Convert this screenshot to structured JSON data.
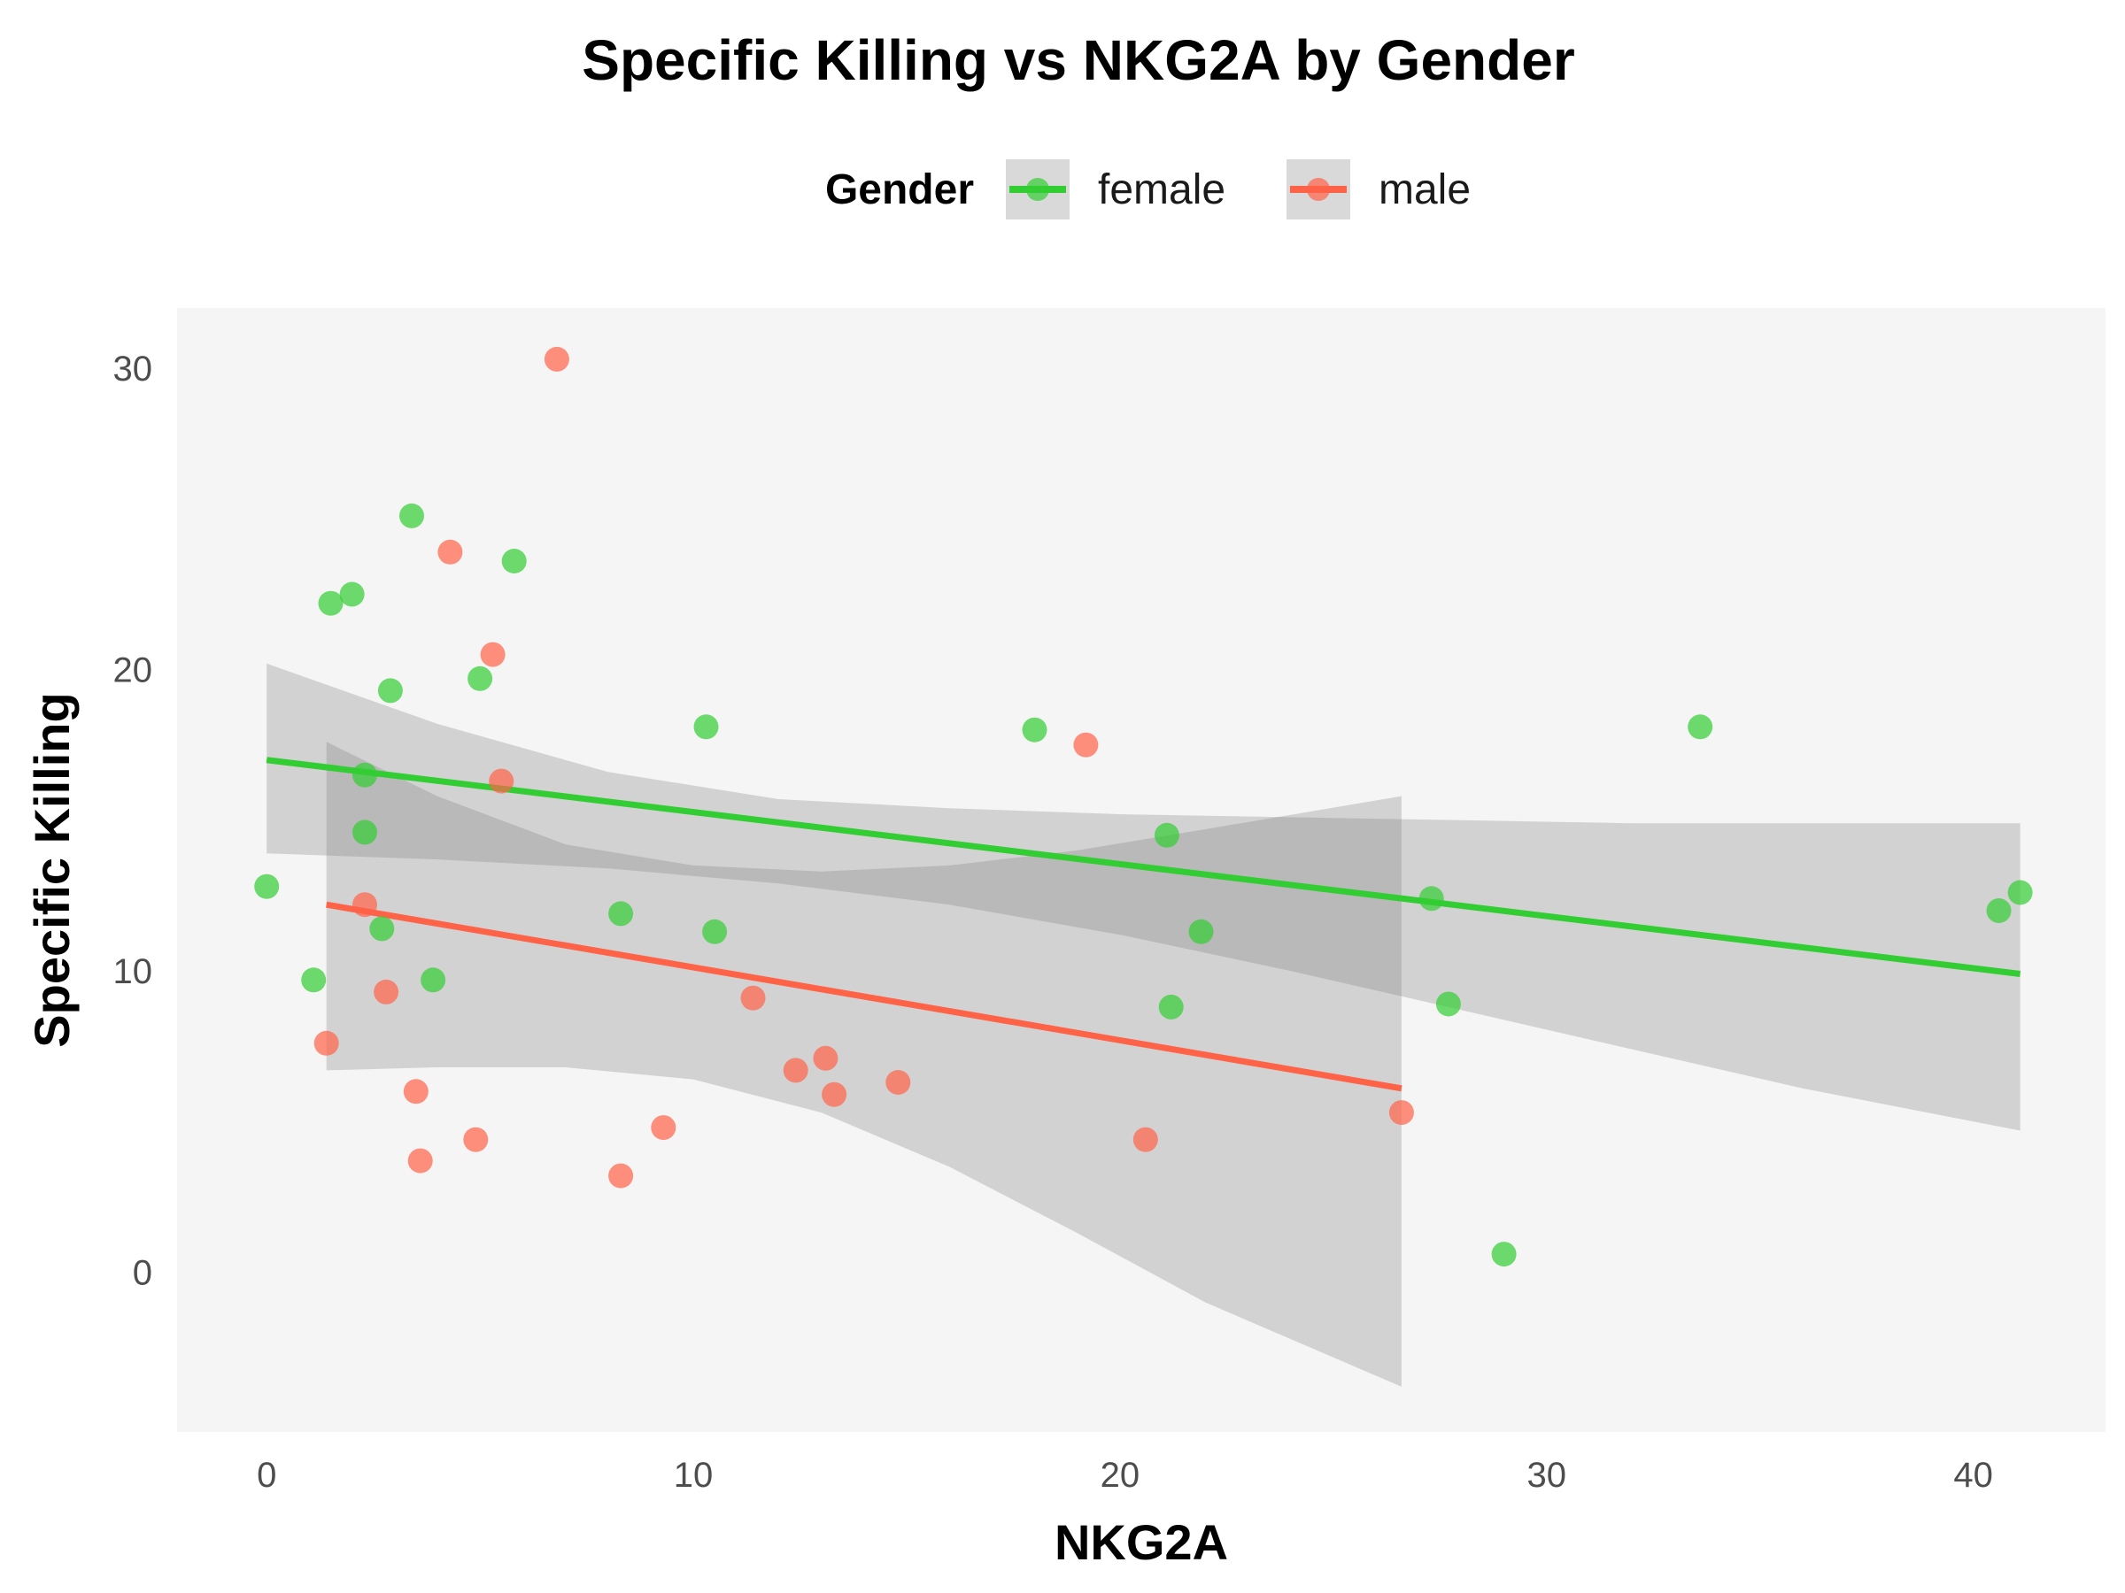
{
  "chart_data": {
    "type": "scatter",
    "title": "Specific Killing vs NKG2A by Gender",
    "xlabel": "NKG2A",
    "ylabel": "Specific Killing",
    "xlim": [
      -2.1,
      43.1
    ],
    "ylim": [
      -5.3,
      32.0
    ],
    "x_ticks": [
      "0",
      "10",
      "20",
      "30",
      "40"
    ],
    "y_ticks": [
      "0",
      "10",
      "20",
      "30"
    ],
    "grid": false,
    "legend": {
      "title": "Gender",
      "placement": "top",
      "entries": [
        "female",
        "male"
      ]
    },
    "series": [
      {
        "name": "female",
        "color": "#32CD32",
        "points": [
          [
            0.0,
            12.8
          ],
          [
            1.1,
            9.7
          ],
          [
            1.5,
            22.2
          ],
          [
            2.0,
            22.5
          ],
          [
            2.3,
            16.5
          ],
          [
            2.3,
            14.6
          ],
          [
            2.7,
            11.4
          ],
          [
            2.9,
            19.3
          ],
          [
            3.4,
            25.1
          ],
          [
            3.9,
            9.7
          ],
          [
            5.0,
            19.7
          ],
          [
            5.8,
            23.6
          ],
          [
            8.3,
            11.9
          ],
          [
            10.3,
            18.1
          ],
          [
            10.5,
            11.3
          ],
          [
            18.0,
            18.0
          ],
          [
            21.1,
            14.5
          ],
          [
            21.2,
            8.8
          ],
          [
            21.9,
            11.3
          ],
          [
            27.3,
            12.4
          ],
          [
            27.7,
            8.9
          ],
          [
            29.0,
            0.6
          ],
          [
            33.6,
            18.1
          ],
          [
            40.6,
            12.0
          ],
          [
            41.1,
            12.6
          ]
        ],
        "fit": {
          "x": [
            0.0,
            41.1
          ],
          "y": [
            17.0,
            9.9
          ]
        },
        "ci_x": [
          0.0,
          4,
          8,
          12,
          16,
          20,
          24,
          28,
          32,
          36,
          41.1
        ],
        "ci_lower": [
          13.9,
          13.7,
          13.4,
          12.9,
          12.2,
          11.2,
          10.0,
          8.7,
          7.4,
          6.1,
          4.7
        ],
        "ci_upper": [
          20.2,
          18.2,
          16.6,
          15.7,
          15.4,
          15.2,
          15.1,
          15.0,
          14.9,
          14.9,
          14.9
        ]
      },
      {
        "name": "male",
        "color": "#FF6347",
        "points": [
          [
            1.4,
            7.6
          ],
          [
            2.3,
            12.2
          ],
          [
            2.8,
            9.3
          ],
          [
            3.5,
            6.0
          ],
          [
            3.6,
            3.7
          ],
          [
            4.3,
            23.9
          ],
          [
            4.9,
            4.4
          ],
          [
            5.3,
            20.5
          ],
          [
            5.5,
            16.3
          ],
          [
            6.8,
            30.3
          ],
          [
            8.3,
            3.2
          ],
          [
            9.3,
            4.8
          ],
          [
            11.4,
            9.1
          ],
          [
            12.4,
            6.7
          ],
          [
            13.1,
            7.1
          ],
          [
            13.3,
            5.9
          ],
          [
            14.8,
            6.3
          ],
          [
            19.2,
            17.5
          ],
          [
            20.6,
            4.4
          ],
          [
            26.6,
            5.3
          ]
        ],
        "fit": {
          "x": [
            1.4,
            26.6
          ],
          "y": [
            12.2,
            6.1
          ]
        },
        "ci_x": [
          1.4,
          4,
          7,
          10,
          13,
          16,
          19,
          22,
          26.6
        ],
        "ci_lower": [
          6.7,
          6.8,
          6.8,
          6.4,
          5.3,
          3.5,
          1.3,
          -1.0,
          -3.8
        ],
        "ci_upper": [
          17.6,
          15.8,
          14.2,
          13.5,
          13.3,
          13.5,
          14.0,
          14.7,
          15.8
        ]
      }
    ]
  }
}
